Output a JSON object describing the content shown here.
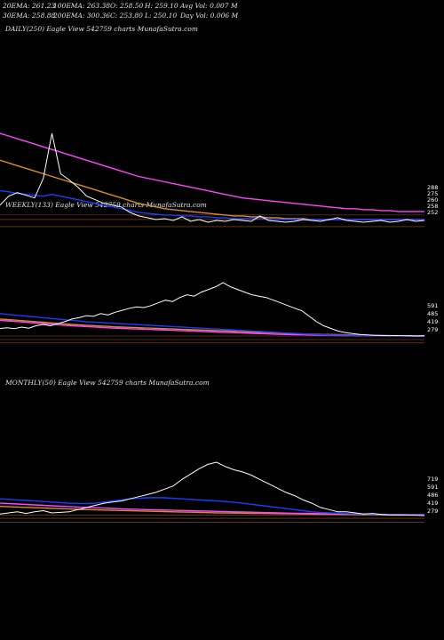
{
  "stats": {
    "row1": [
      "20EMA: 261.23",
      "100EMA: 263.38",
      "O: 258.50",
      "H: 259.10",
      "Avg Vol: 0.007  M"
    ],
    "row2": [
      "30EMA: 258.88",
      "200EMA: 300.36",
      "C: 253.80",
      "L: 250.10",
      "Day Vol: 0.006  M"
    ]
  },
  "colors": {
    "price": "#ffffff",
    "ema_short": "#1e3cff",
    "ema_mid": "#ff44ff",
    "ema_long": "#d98c2a",
    "ref": "#c46a1c"
  },
  "chart_data": [
    {
      "type": "line",
      "title": "DAILY(250) Eagle  View  542759 charts MunafaSutra.com",
      "series": [
        {
          "values": [
            270,
            280,
            284,
            281,
            278,
            300,
            350,
            305,
            298,
            290,
            280,
            276,
            272,
            270,
            268,
            262,
            258,
            256,
            254,
            255,
            253,
            257,
            252,
            254,
            251,
            253,
            252,
            254,
            253,
            252,
            258,
            253,
            252,
            251,
            252,
            254,
            253,
            252,
            254,
            256,
            253,
            252,
            251,
            252,
            253,
            251,
            252,
            254,
            252,
            253
          ]
        },
        {
          "values": [
            286,
            285,
            283,
            282,
            281,
            280,
            282,
            280,
            278,
            276,
            274,
            272,
            270,
            268,
            266,
            264,
            262,
            261,
            260,
            259,
            259,
            258,
            258,
            257,
            257,
            256,
            256,
            255,
            255,
            255,
            255,
            255,
            254,
            254,
            254,
            254,
            254,
            254,
            254,
            254,
            254,
            254,
            254,
            254,
            254,
            254,
            254,
            254,
            254,
            254
          ]
        },
        {
          "values": [
            350,
            347,
            344,
            341,
            338,
            335,
            332,
            329,
            326,
            323,
            320,
            317,
            314,
            311,
            308,
            305,
            302,
            300,
            298,
            296,
            294,
            292,
            290,
            288,
            286,
            284,
            282,
            280,
            278,
            277,
            276,
            275,
            274,
            273,
            272,
            271,
            270,
            269,
            268,
            267,
            266,
            266,
            265,
            265,
            264,
            264,
            263,
            263,
            263,
            263
          ]
        },
        {
          "values": [
            320,
            317,
            314,
            311,
            308,
            305,
            302,
            299,
            296,
            293,
            290,
            287,
            284,
            281,
            278,
            275,
            272,
            270,
            268,
            266,
            265,
            264,
            263,
            262,
            261,
            260,
            259,
            258,
            258,
            257,
            257,
            256,
            256,
            255,
            255,
            255,
            254,
            254,
            254,
            254,
            254,
            254,
            254,
            254,
            254,
            254,
            254,
            254,
            254,
            254
          ]
        }
      ],
      "right_labels": [
        "288",
        "275",
        "260",
        "258",
        "252"
      ]
    },
    {
      "type": "line",
      "title": "WEEKLY(133) Eagle  View  542759 charts MunafaSutra.com",
      "series": [
        {
          "values": [
            450,
            455,
            448,
            460,
            452,
            470,
            480,
            470,
            485,
            500,
            520,
            530,
            545,
            540,
            560,
            550,
            570,
            585,
            600,
            610,
            605,
            620,
            640,
            660,
            650,
            680,
            700,
            690,
            720,
            740,
            760,
            790,
            760,
            740,
            720,
            700,
            690,
            680,
            660,
            640,
            620,
            600,
            580,
            540,
            500,
            470,
            450,
            430,
            420,
            412,
            406,
            402,
            399,
            398,
            396,
            397,
            395,
            396,
            394,
            395
          ]
        },
        {
          "values": [
            560,
            555,
            550,
            545,
            540,
            535,
            530,
            525,
            520,
            515,
            510,
            505,
            500,
            497,
            494,
            491,
            488,
            485,
            482,
            479,
            476,
            473,
            470,
            467,
            464,
            461,
            458,
            455,
            452,
            449,
            446,
            443,
            440,
            437,
            434,
            431,
            428,
            425,
            422,
            419,
            416,
            413,
            410,
            408,
            406,
            404,
            402,
            401,
            400,
            399,
            398,
            397,
            396,
            396,
            395,
            395,
            395,
            394,
            394,
            394
          ]
        },
        {
          "values": [
            510,
            506,
            502,
            498,
            494,
            490,
            486,
            482,
            478,
            474,
            470,
            467,
            464,
            461,
            458,
            455,
            452,
            450,
            448,
            446,
            444,
            442,
            440,
            438,
            436,
            434,
            432,
            430,
            428,
            426,
            424,
            422,
            420,
            418,
            416,
            414,
            412,
            410,
            408,
            406,
            405,
            404,
            403,
            402,
            401,
            400,
            399,
            398,
            397,
            397,
            396,
            396,
            396,
            395,
            395,
            395,
            395,
            394,
            394,
            394
          ]
        },
        {
          "values": [
            520,
            516,
            512,
            508,
            504,
            500,
            496,
            492,
            488,
            484,
            480,
            477,
            474,
            471,
            468,
            465,
            462,
            460,
            458,
            456,
            454,
            452,
            450,
            448,
            446,
            444,
            442,
            440,
            438,
            436,
            434,
            432,
            430,
            428,
            426,
            424,
            422,
            420,
            418,
            416,
            414,
            412,
            410,
            408,
            407,
            406,
            405,
            404,
            403,
            402,
            401,
            400,
            399,
            398,
            397,
            396,
            396,
            395,
            395,
            395
          ]
        }
      ],
      "right_labels": [
        "591",
        "485",
        "419",
        "279"
      ]
    },
    {
      "type": "line",
      "title": "MONTHLY(50) Eagle  View  542759 charts MunafaSutra.com",
      "series": [
        {
          "values": [
            280,
            290,
            300,
            285,
            300,
            310,
            290,
            295,
            300,
            320,
            340,
            360,
            380,
            390,
            400,
            420,
            440,
            460,
            480,
            510,
            540,
            600,
            650,
            700,
            740,
            760,
            720,
            690,
            670,
            640,
            600,
            560,
            520,
            480,
            450,
            410,
            380,
            340,
            320,
            300,
            300,
            290,
            280,
            285,
            275,
            270,
            272,
            270,
            268,
            265
          ]
        },
        {
          "values": [
            420,
            415,
            410,
            405,
            400,
            395,
            390,
            385,
            380,
            378,
            376,
            380,
            390,
            400,
            410,
            420,
            425,
            430,
            432,
            430,
            425,
            420,
            415,
            410,
            405,
            400,
            395,
            388,
            380,
            370,
            360,
            350,
            340,
            330,
            320,
            310,
            300,
            295,
            290,
            287,
            284,
            281,
            279,
            277,
            275,
            274,
            273,
            272,
            271,
            270
          ]
        },
        {
          "values": [
            380,
            376,
            372,
            368,
            364,
            360,
            356,
            352,
            348,
            344,
            340,
            337,
            334,
            331,
            328,
            325,
            322,
            320,
            318,
            316,
            314,
            312,
            310,
            308,
            306,
            304,
            302,
            300,
            298,
            296,
            294,
            292,
            290,
            288,
            286,
            285,
            284,
            283,
            282,
            281,
            280,
            279,
            278,
            277,
            276,
            275,
            274,
            274,
            273,
            273
          ]
        },
        {
          "values": [
            350,
            347,
            344,
            341,
            338,
            335,
            332,
            329,
            326,
            323,
            320,
            318,
            316,
            314,
            312,
            310,
            308,
            306,
            304,
            302,
            300,
            298,
            296,
            294,
            292,
            290,
            289,
            288,
            287,
            286,
            285,
            284,
            283,
            282,
            281,
            280,
            279,
            278,
            277,
            276,
            275,
            274,
            273,
            272,
            271,
            270,
            270,
            270,
            270,
            270
          ]
        }
      ],
      "right_labels": [
        "719",
        "591",
        "486",
        "419",
        "279"
      ]
    }
  ]
}
